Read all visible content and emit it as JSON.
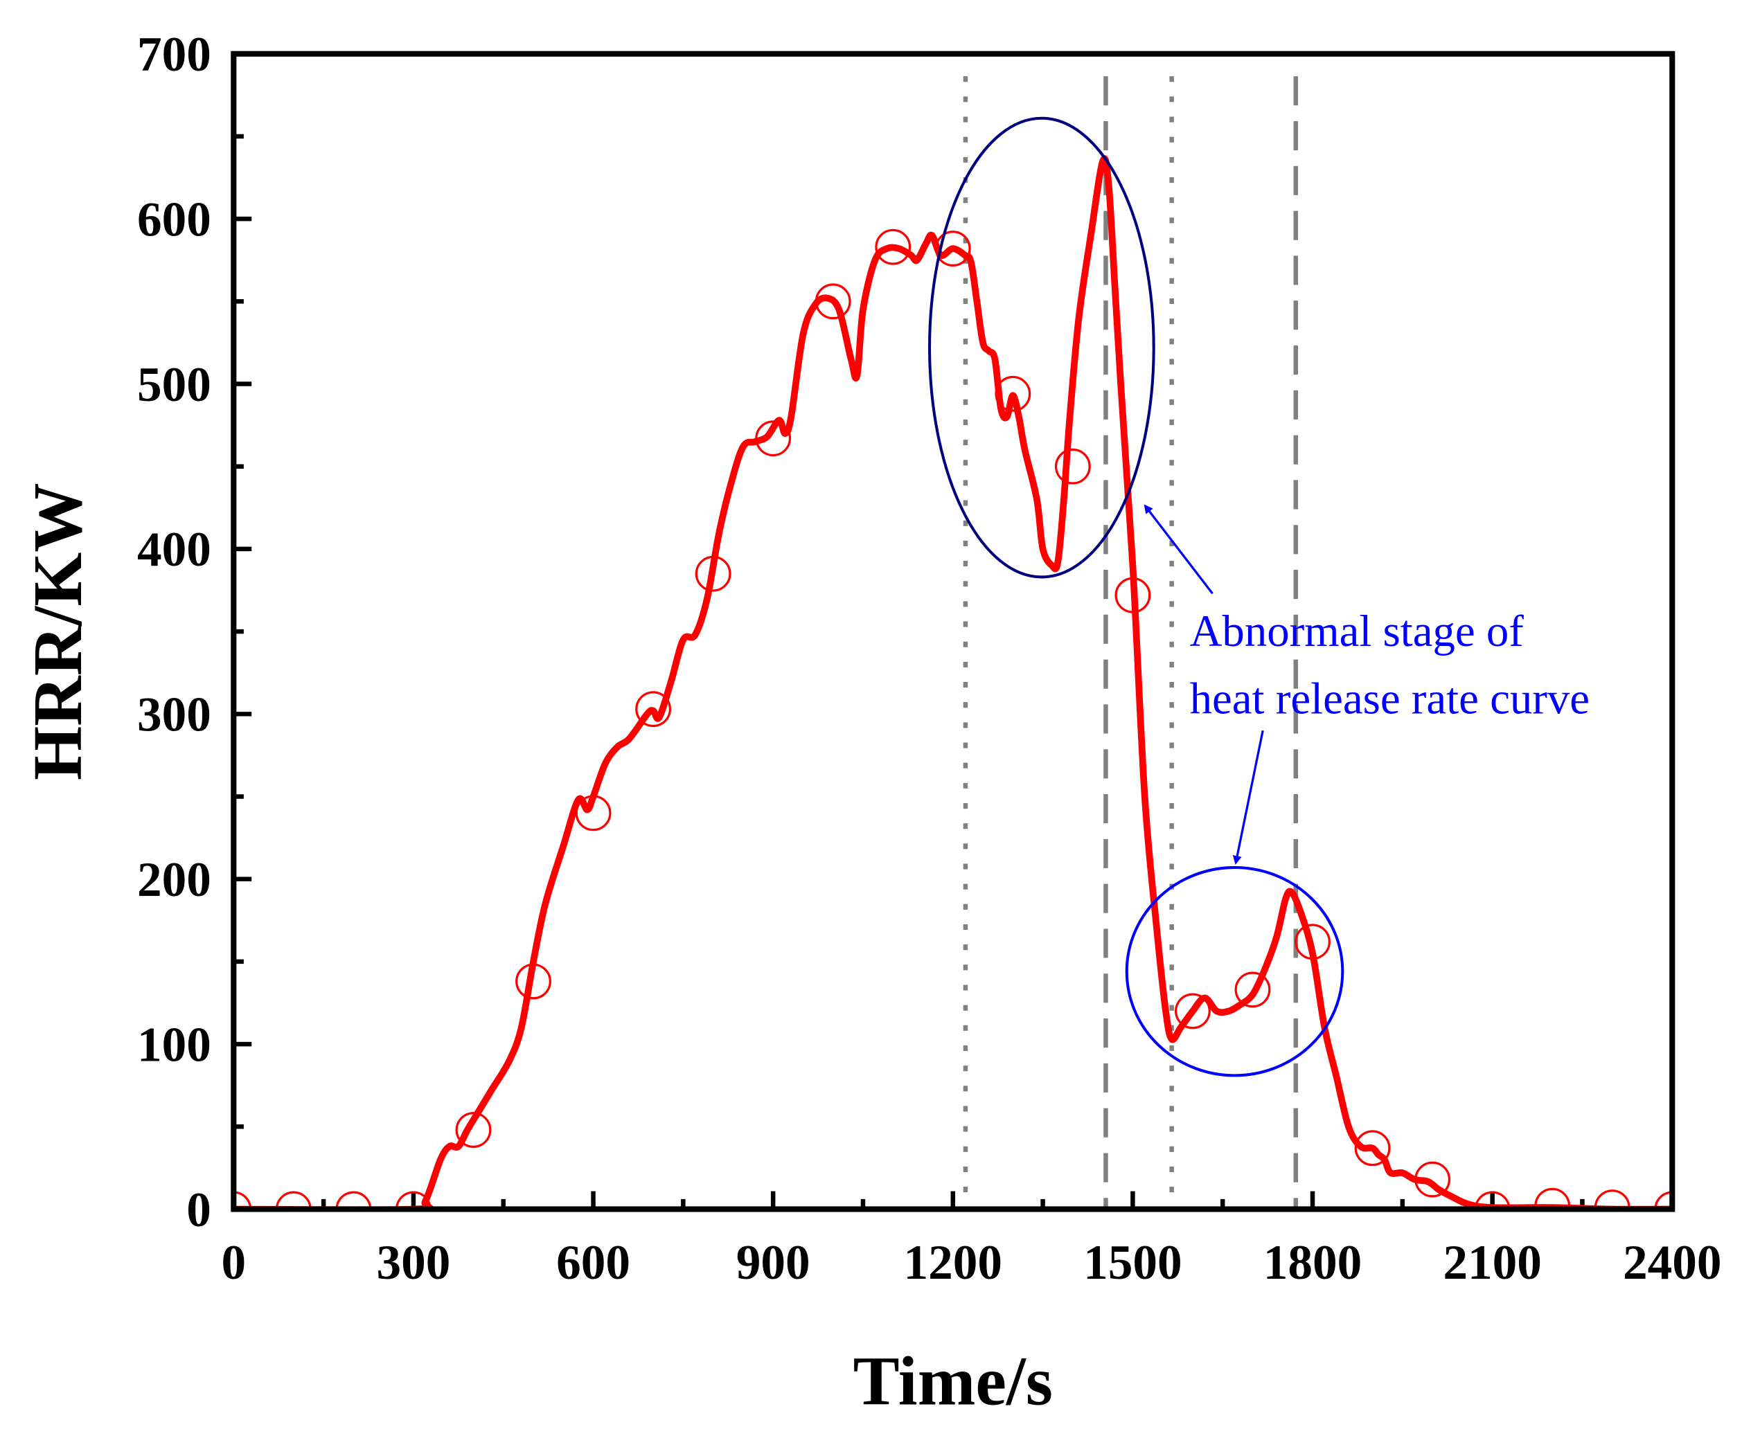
{
  "chart_data": {
    "type": "line",
    "title": "",
    "xlabel": "Time/s",
    "ylabel": "HRR/KW",
    "xlim": [
      0,
      2400
    ],
    "ylim": [
      0,
      700
    ],
    "xticks": [
      "0",
      "300",
      "600",
      "900",
      "1200",
      "1500",
      "1800",
      "2100",
      "2400"
    ],
    "yticks": [
      "0",
      "100",
      "200",
      "300",
      "400",
      "500",
      "600",
      "700"
    ],
    "grid": false,
    "series": [
      {
        "name": "HRR",
        "color": "#ff0000",
        "points": [
          [
            0,
            0
          ],
          [
            300,
            0
          ],
          [
            320,
            5
          ],
          [
            345,
            30
          ],
          [
            360,
            38
          ],
          [
            375,
            38
          ],
          [
            390,
            48
          ],
          [
            410,
            60
          ],
          [
            430,
            72
          ],
          [
            460,
            90
          ],
          [
            480,
            110
          ],
          [
            500,
            150
          ],
          [
            520,
            185
          ],
          [
            550,
            220
          ],
          [
            575,
            248
          ],
          [
            590,
            242
          ],
          [
            600,
            250
          ],
          [
            620,
            270
          ],
          [
            640,
            280
          ],
          [
            660,
            285
          ],
          [
            690,
            300
          ],
          [
            700,
            302
          ],
          [
            710,
            298
          ],
          [
            730,
            320
          ],
          [
            750,
            345
          ],
          [
            770,
            348
          ],
          [
            790,
            370
          ],
          [
            810,
            410
          ],
          [
            830,
            440
          ],
          [
            850,
            462
          ],
          [
            870,
            465
          ],
          [
            890,
            468
          ],
          [
            910,
            478
          ],
          [
            920,
            470
          ],
          [
            930,
            480
          ],
          [
            950,
            530
          ],
          [
            970,
            548
          ],
          [
            990,
            552
          ],
          [
            1010,
            545
          ],
          [
            1030,
            515
          ],
          [
            1040,
            505
          ],
          [
            1050,
            545
          ],
          [
            1070,
            575
          ],
          [
            1090,
            582
          ],
          [
            1110,
            582
          ],
          [
            1130,
            578
          ],
          [
            1140,
            575
          ],
          [
            1155,
            585
          ],
          [
            1165,
            590
          ],
          [
            1180,
            578
          ],
          [
            1200,
            582
          ],
          [
            1220,
            578
          ],
          [
            1230,
            574
          ],
          [
            1240,
            550
          ],
          [
            1250,
            525
          ],
          [
            1260,
            520
          ],
          [
            1270,
            515
          ],
          [
            1280,
            485
          ],
          [
            1290,
            480
          ],
          [
            1300,
            493
          ],
          [
            1310,
            480
          ],
          [
            1320,
            460
          ],
          [
            1340,
            430
          ],
          [
            1350,
            400
          ],
          [
            1365,
            390
          ],
          [
            1375,
            392
          ],
          [
            1385,
            430
          ],
          [
            1395,
            480
          ],
          [
            1410,
            540
          ],
          [
            1430,
            590
          ],
          [
            1450,
            635
          ],
          [
            1460,
            620
          ],
          [
            1470,
            560
          ],
          [
            1480,
            500
          ],
          [
            1500,
            390
          ],
          [
            1520,
            250
          ],
          [
            1540,
            170
          ],
          [
            1555,
            120
          ],
          [
            1565,
            103
          ],
          [
            1580,
            110
          ],
          [
            1600,
            120
          ],
          [
            1620,
            128
          ],
          [
            1640,
            120
          ],
          [
            1660,
            120
          ],
          [
            1680,
            124
          ],
          [
            1700,
            130
          ],
          [
            1720,
            145
          ],
          [
            1740,
            165
          ],
          [
            1755,
            188
          ],
          [
            1765,
            192
          ],
          [
            1780,
            180
          ],
          [
            1800,
            155
          ],
          [
            1820,
            110
          ],
          [
            1840,
            80
          ],
          [
            1860,
            50
          ],
          [
            1880,
            38
          ],
          [
            1900,
            37
          ],
          [
            1910,
            33
          ],
          [
            1920,
            30
          ],
          [
            1930,
            22
          ],
          [
            1950,
            22
          ],
          [
            1970,
            18
          ],
          [
            1990,
            17
          ],
          [
            2000,
            15
          ],
          [
            2010,
            12
          ],
          [
            2030,
            8
          ],
          [
            2060,
            3
          ],
          [
            2100,
            1
          ],
          [
            2200,
            1
          ],
          [
            2300,
            0
          ],
          [
            2400,
            0
          ]
        ],
        "markers": [
          [
            0,
            0
          ],
          [
            100,
            0
          ],
          [
            200,
            0
          ],
          [
            300,
            0
          ],
          [
            400,
            48
          ],
          [
            500,
            138
          ],
          [
            600,
            240
          ],
          [
            700,
            303
          ],
          [
            800,
            385
          ],
          [
            900,
            467
          ],
          [
            1000,
            550
          ],
          [
            1100,
            583
          ],
          [
            1200,
            582
          ],
          [
            1300,
            494
          ],
          [
            1400,
            450
          ],
          [
            1500,
            372
          ],
          [
            1600,
            120
          ],
          [
            1700,
            133
          ],
          [
            1800,
            162
          ],
          [
            1900,
            37
          ],
          [
            2000,
            18
          ],
          [
            2100,
            0
          ],
          [
            2200,
            2
          ],
          [
            2300,
            1
          ],
          [
            2400,
            0
          ]
        ]
      }
    ],
    "vlines": [
      {
        "x": 1221,
        "style": "dotted",
        "color": "#808080"
      },
      {
        "x": 1455,
        "style": "dashed",
        "color": "#808080"
      },
      {
        "x": 1565,
        "style": "dotted",
        "color": "#808080"
      },
      {
        "x": 1772,
        "style": "dashed",
        "color": "#808080"
      }
    ],
    "ellipses": [
      {
        "cx": 1348,
        "cy": 522,
        "rx": 187,
        "ry": 139,
        "color": "#000080"
      },
      {
        "cx": 1670,
        "cy": 144,
        "rx": 180,
        "ry": 63,
        "color": "#0000ff"
      }
    ],
    "annotation": {
      "lines": [
        "Abnormal stage of",
        "heat release rate curve"
      ],
      "color": "#0000ff",
      "arrows": [
        {
          "from": [
            1633,
            373
          ],
          "to": [
            1521,
            426
          ]
        },
        {
          "from": [
            1717,
            290
          ],
          "to": [
            1672,
            210
          ]
        }
      ]
    }
  }
}
